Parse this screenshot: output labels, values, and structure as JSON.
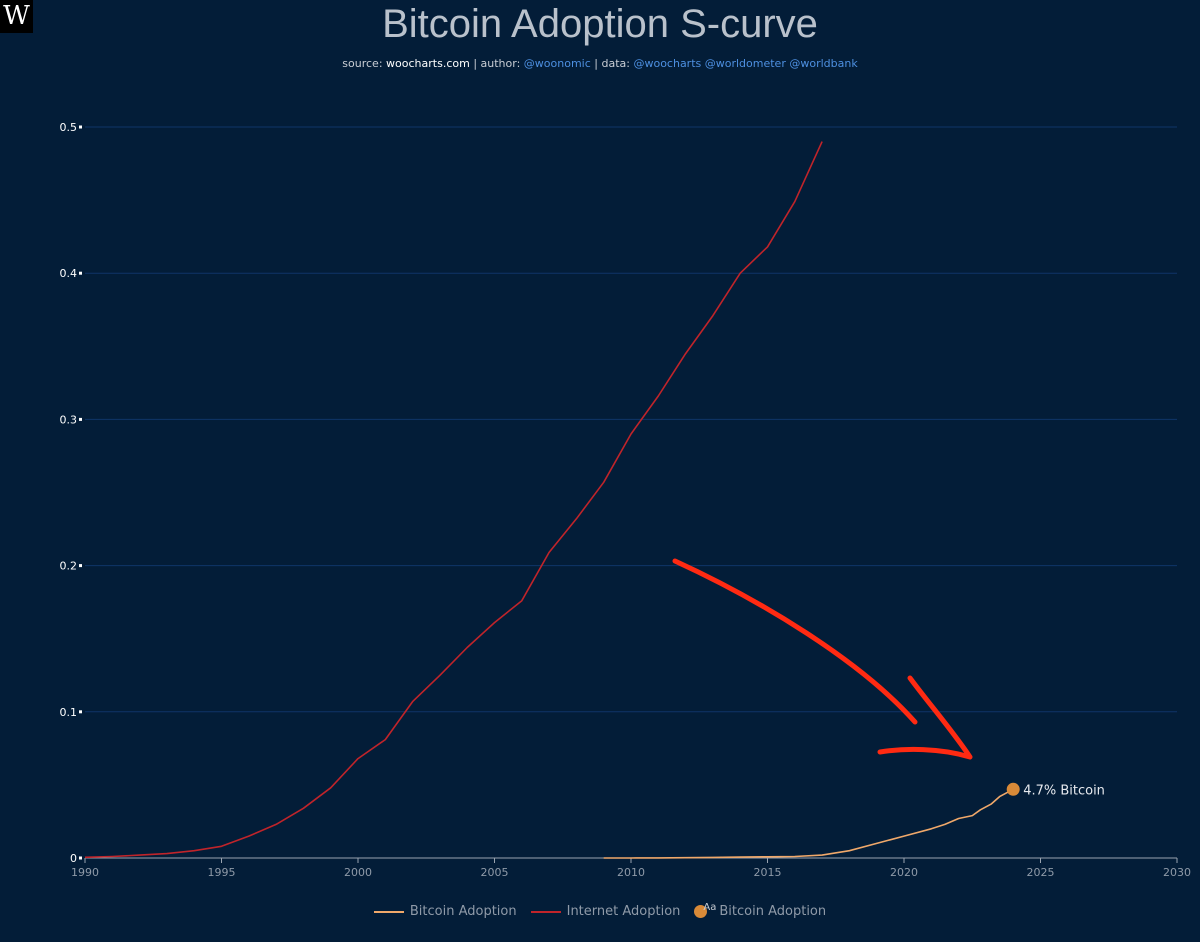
{
  "logo": {
    "text": "W"
  },
  "title": "Bitcoin Adoption S-curve",
  "subtitle": {
    "source_label": "source:",
    "source": "woocharts.com",
    "author_label": "| author:",
    "author": "@woonomic",
    "data_label": "| data:",
    "data_sources": "@woocharts @worldometer @worldbank"
  },
  "colors": {
    "background": "#031d38",
    "bitcoin": "#f0a86a",
    "internet": "#c0242a",
    "marker": "#d98a38",
    "arrow": "#ff2a12",
    "grid": "#0f3569"
  },
  "legend": [
    {
      "label": "Bitcoin Adoption",
      "kind": "line",
      "color_key": "bitcoin"
    },
    {
      "label": "Internet Adoption",
      "kind": "line",
      "color_key": "internet"
    },
    {
      "label": "Bitcoin Adoption",
      "kind": "marker",
      "color_key": "marker",
      "badge": "Aa"
    }
  ],
  "chart_data": {
    "type": "line",
    "title": "Bitcoin Adoption S-curve",
    "xlabel": "",
    "ylabel": "",
    "xlim": [
      1990,
      2030
    ],
    "ylim": [
      0,
      0.5
    ],
    "x_ticks": [
      "1990",
      "1995",
      "2000",
      "2005",
      "2010",
      "2015",
      "2020",
      "2025",
      "2030"
    ],
    "y_ticks": [
      "0",
      "0.1",
      "0.2",
      "0.3",
      "0.4",
      "0.5"
    ],
    "grid": true,
    "legend_position": "bottom",
    "series": [
      {
        "name": "Internet Adoption",
        "color_key": "internet",
        "x": [
          1990,
          1991,
          1992,
          1993,
          1994,
          1995,
          1996,
          1997,
          1998,
          1999,
          2000,
          2001,
          2002,
          2003,
          2004,
          2005,
          2006,
          2007,
          2008,
          2009,
          2010,
          2011,
          2012,
          2013,
          2014,
          2015,
          2016,
          2017
        ],
        "y": [
          0.0005,
          0.001,
          0.002,
          0.003,
          0.005,
          0.008,
          0.015,
          0.023,
          0.034,
          0.048,
          0.068,
          0.081,
          0.107,
          0.125,
          0.144,
          0.161,
          0.176,
          0.209,
          0.232,
          0.257,
          0.29,
          0.316,
          0.345,
          0.371,
          0.4,
          0.418,
          0.449,
          0.49
        ]
      },
      {
        "name": "Bitcoin Adoption",
        "color_key": "bitcoin",
        "x": [
          2009,
          2010,
          2011,
          2012,
          2013,
          2014,
          2015,
          2016,
          2017,
          2018,
          2019,
          2020,
          2021,
          2021.5,
          2022,
          2022.5,
          2022.8,
          2023.2,
          2023.5,
          2024
        ],
        "y": [
          0.0,
          0.0,
          0.0001,
          0.0002,
          0.0004,
          0.0006,
          0.0008,
          0.001,
          0.002,
          0.005,
          0.01,
          0.015,
          0.02,
          0.023,
          0.027,
          0.029,
          0.033,
          0.037,
          0.042,
          0.047
        ]
      }
    ],
    "annotations": [
      {
        "text": "4.7% Bitcoin",
        "x": 2024,
        "y": 0.047
      }
    ]
  }
}
